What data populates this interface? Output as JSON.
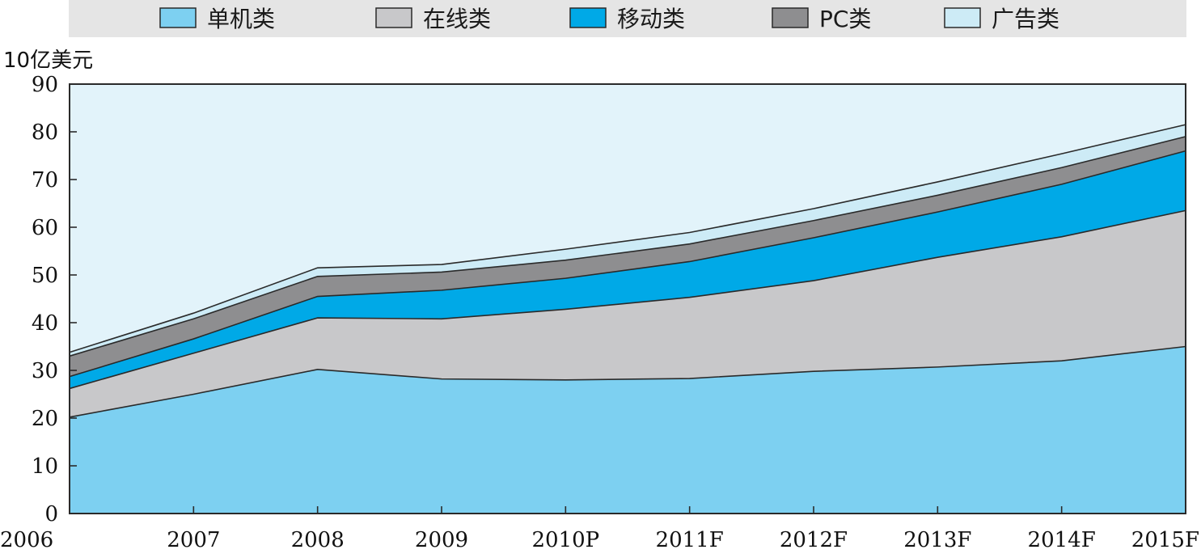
{
  "chart_data": {
    "type": "area",
    "stacked": true,
    "x": [
      "2006",
      "2007",
      "2008",
      "2009",
      "2010P",
      "2011F",
      "2012F",
      "2013F",
      "2014F",
      "2015F"
    ],
    "ylabel": "10亿美元",
    "ylim": [
      0,
      90
    ],
    "yticks": [
      0,
      10,
      20,
      30,
      40,
      50,
      60,
      70,
      80,
      90
    ],
    "legend_position": "top",
    "series": [
      {
        "name": "单机类",
        "color": "#7dd0f1",
        "values": [
          20.2,
          25.0,
          30.2,
          28.2,
          28.0,
          28.3,
          29.8,
          30.7,
          32.0,
          35.0
        ]
      },
      {
        "name": "在线类",
        "color": "#c8c8ca",
        "values": [
          6.0,
          8.6,
          10.8,
          12.6,
          14.8,
          17.0,
          19.0,
          23.0,
          26.0,
          28.5
        ]
      },
      {
        "name": "移动类",
        "color": "#00a9e7",
        "values": [
          2.5,
          3.0,
          4.5,
          6.0,
          6.5,
          7.5,
          9.0,
          9.5,
          11.0,
          12.5
        ]
      },
      {
        "name": "PC类",
        "color": "#8e8e90",
        "values": [
          4.3,
          4.2,
          4.2,
          3.8,
          3.8,
          3.7,
          3.6,
          3.5,
          3.5,
          3.0
        ]
      },
      {
        "name": "广告类",
        "color": "#cdebf6",
        "values": [
          0.8,
          1.2,
          1.8,
          1.6,
          2.3,
          2.4,
          2.5,
          2.8,
          2.9,
          2.5
        ]
      }
    ]
  },
  "colors": {
    "plot_background": "#e2f3fa",
    "legend_background": "#e5e5e5",
    "outline": "#2a2a2a"
  }
}
